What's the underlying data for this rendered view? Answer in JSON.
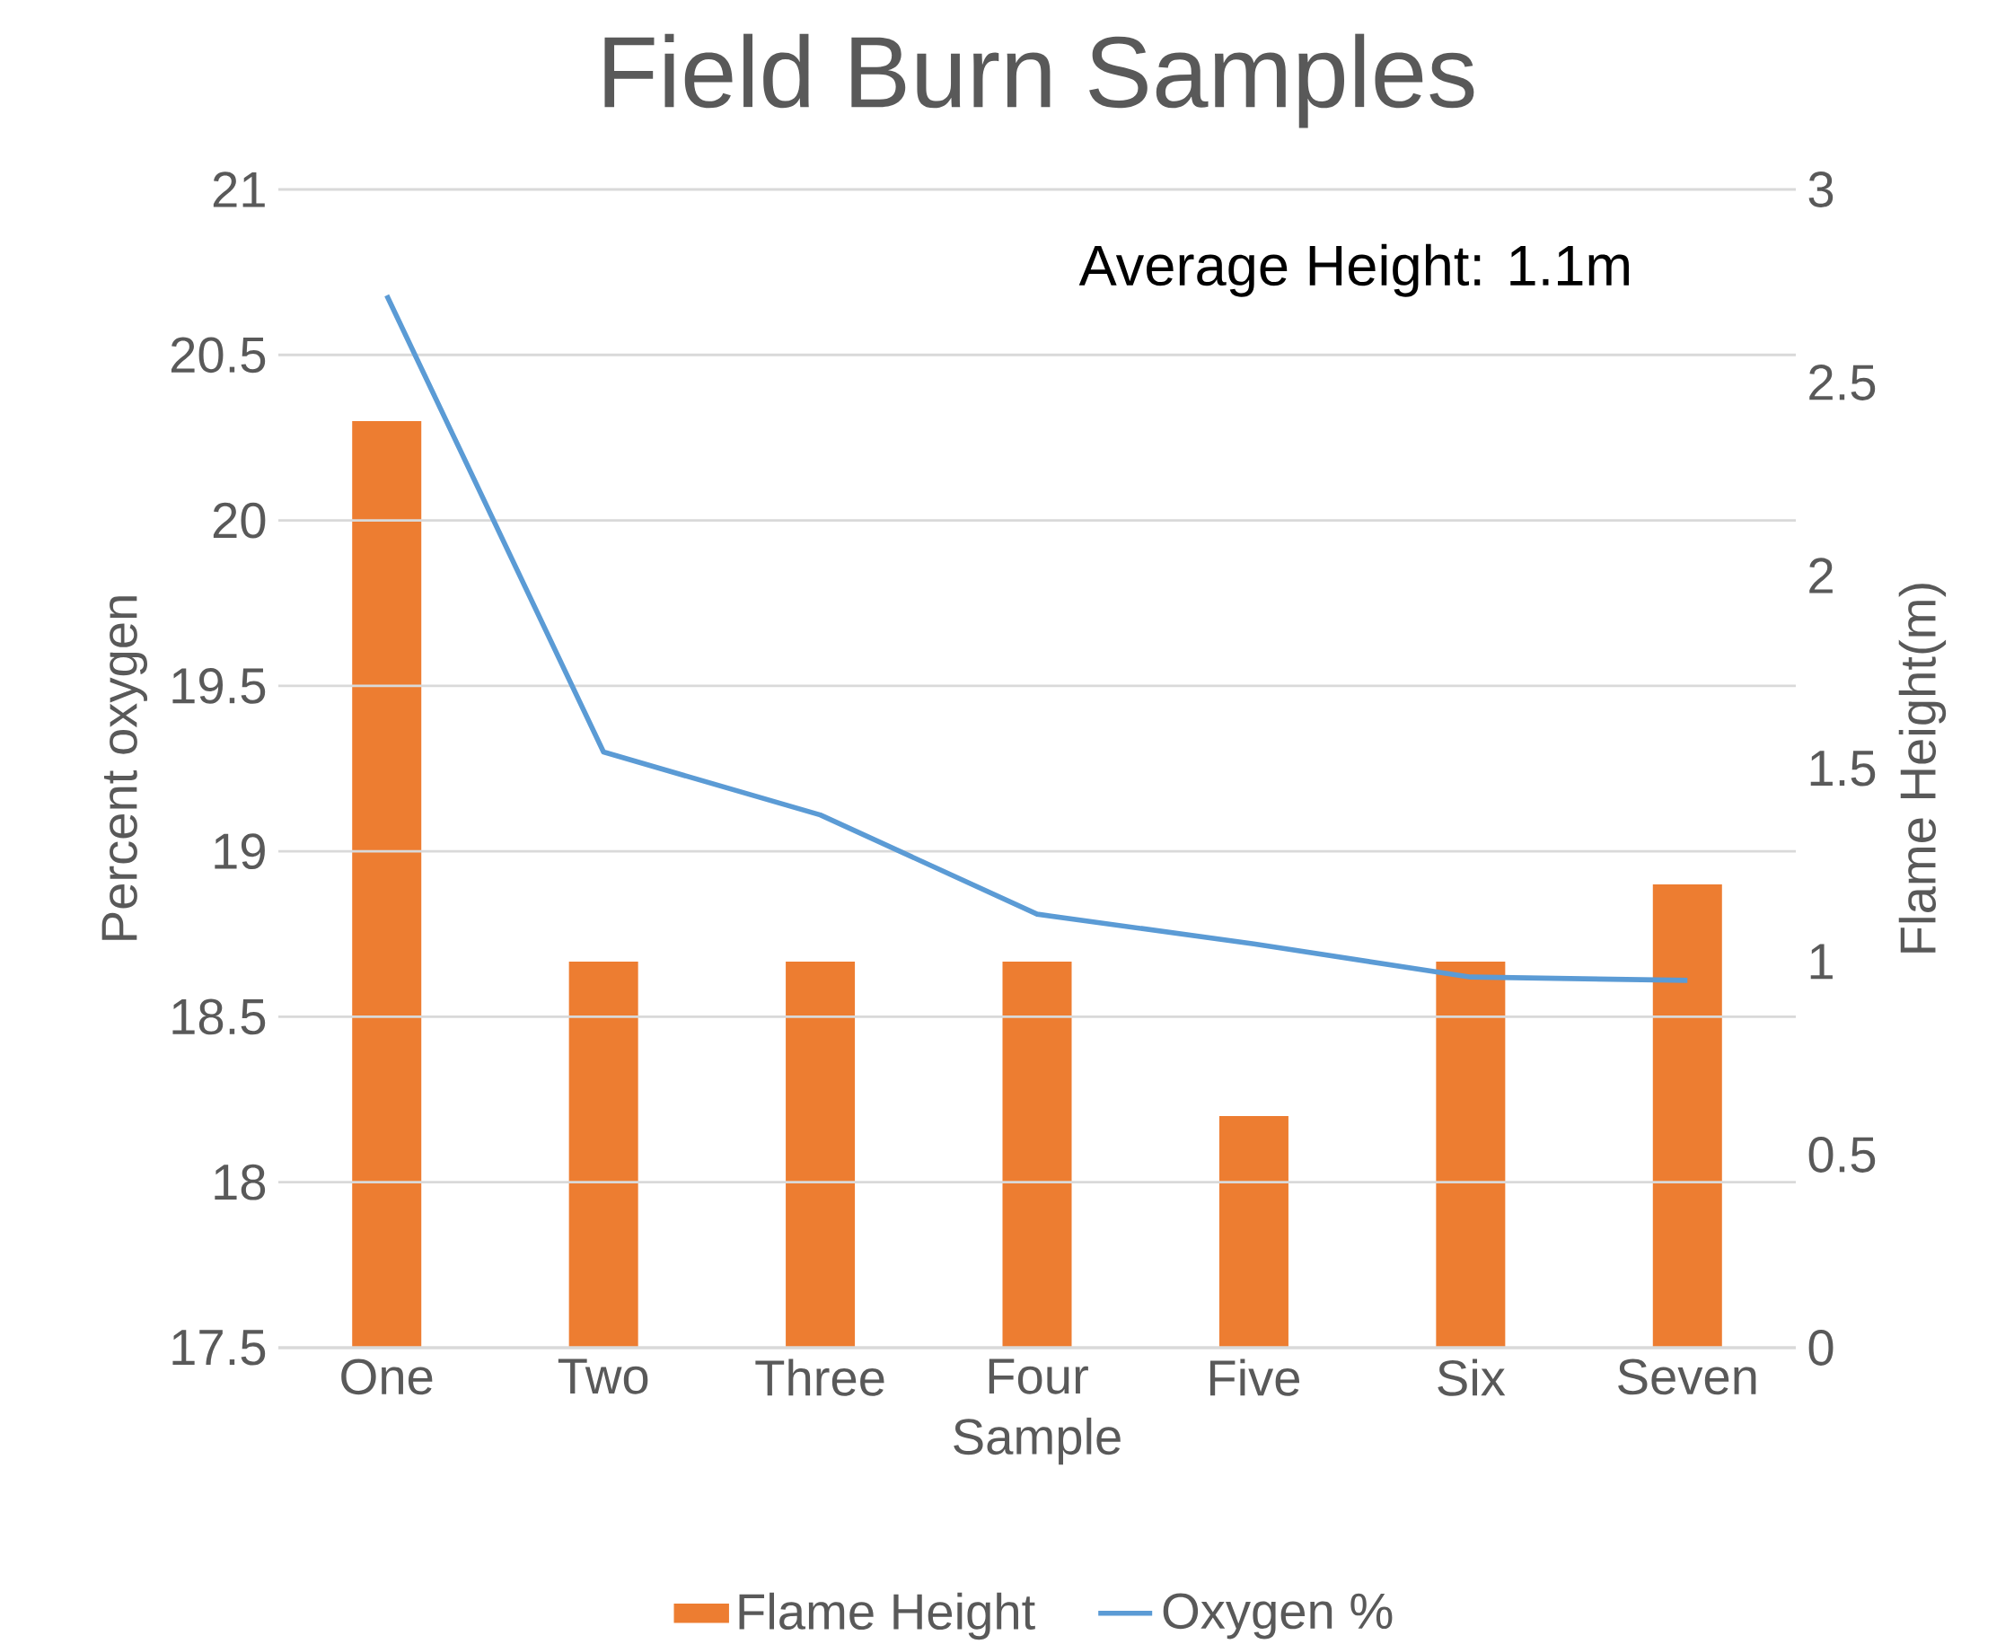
{
  "chart_data": {
    "type": "bar",
    "title": "Field Burn Samples",
    "xlabel": "Sample",
    "ylabel": "Percent oxygen",
    "y2label": "Flame Height(m)",
    "categories": [
      "One",
      "Two",
      "Three",
      "Four",
      "Five",
      "Six",
      "Seven"
    ],
    "series": [
      {
        "name": "Flame Height",
        "axis": "y2",
        "color": "#ed7d31",
        "values": [
          2.4,
          1.0,
          1.0,
          1.0,
          0.6,
          1.0,
          1.2
        ]
      },
      {
        "name": "Oxygen %",
        "type": "line",
        "color": "#5b9bd5",
        "values": [
          20.68,
          19.3,
          19.11,
          18.81,
          18.72,
          18.62,
          18.61
        ]
      }
    ],
    "ylim": [
      17.5,
      21
    ],
    "yticks": [
      17.5,
      18,
      18.5,
      19,
      19.5,
      20,
      20.5,
      21
    ],
    "y2lim": [
      0,
      3
    ],
    "y2ticks": [
      0,
      0.5,
      1,
      1.5,
      2,
      2.5,
      3
    ],
    "annotations": [
      "Average Height: 1.1m"
    ],
    "grid": "y",
    "legend": "bottom",
    "marker": "none",
    "line_style": "solid"
  }
}
